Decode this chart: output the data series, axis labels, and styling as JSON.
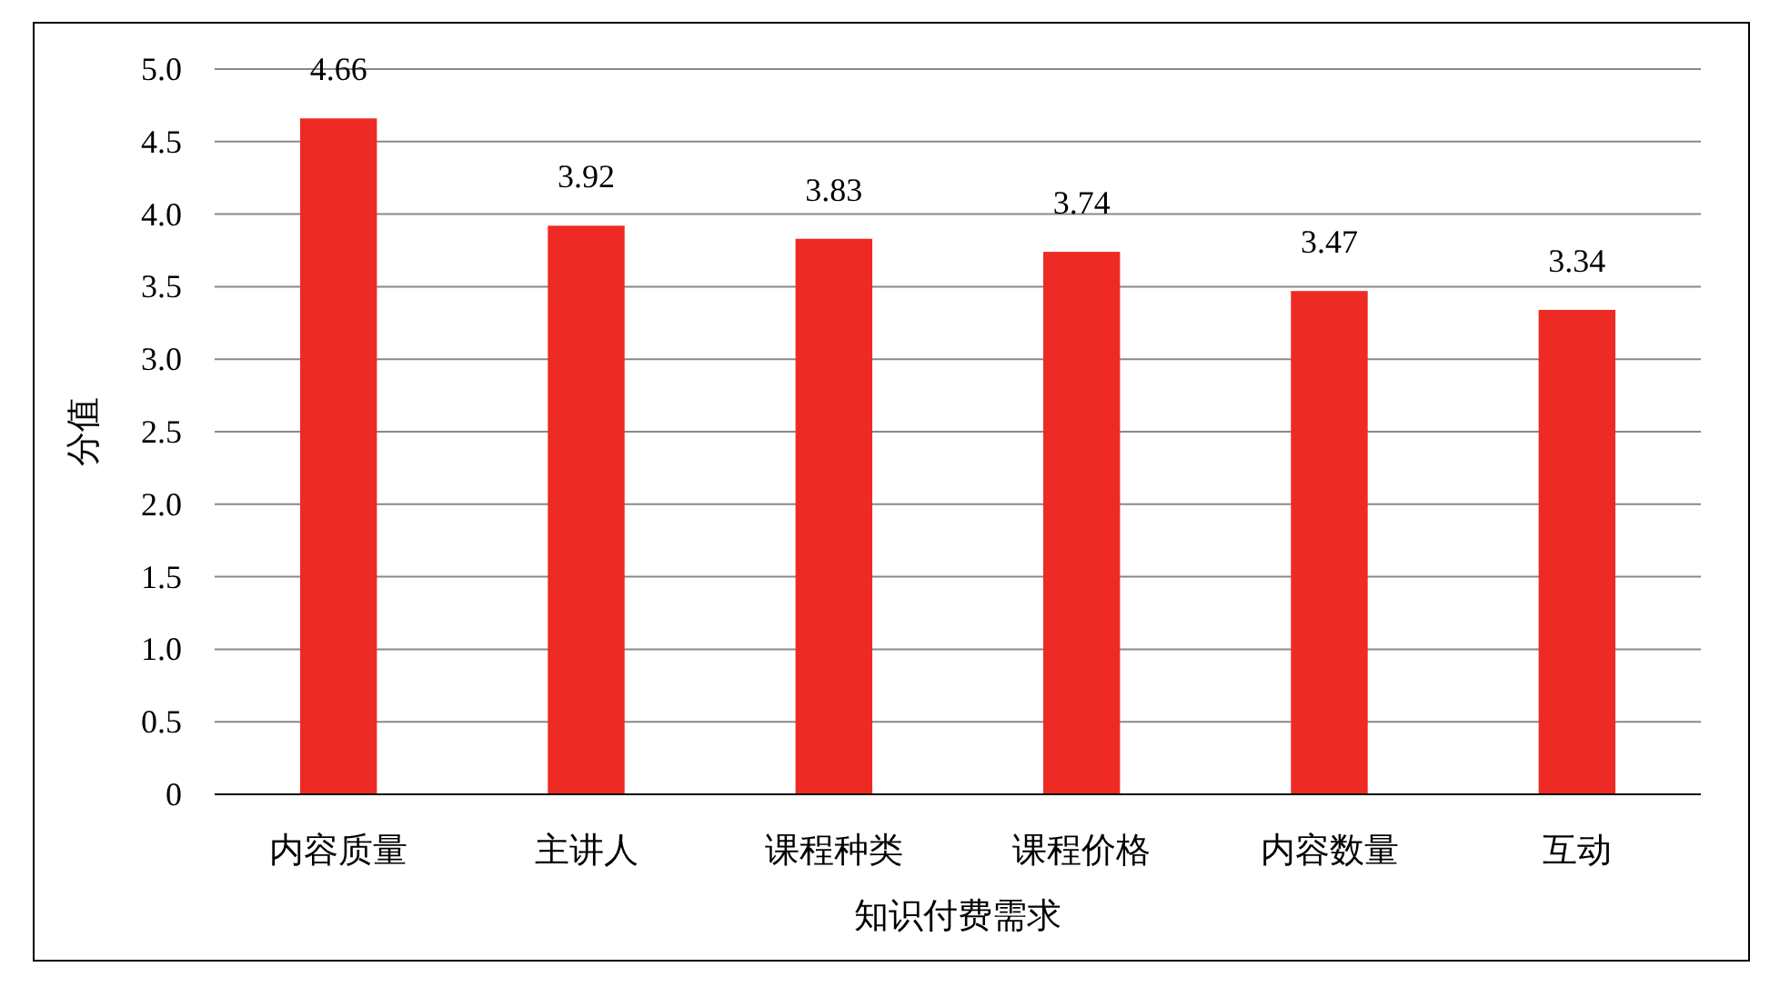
{
  "chart_data": {
    "type": "bar",
    "ylabel": "分值",
    "xlabel": "知识付费需求",
    "categories": [
      "内容质量",
      "主讲人",
      "课程种类",
      "课程价格",
      "内容数量",
      "互动"
    ],
    "values": [
      4.66,
      3.92,
      3.83,
      3.74,
      3.47,
      3.34
    ],
    "color": "#ee2a24",
    "ylim": [
      0,
      5
    ],
    "yticks": [
      0,
      {
        "value": 0.5,
        "label": "0.5"
      },
      {
        "value": 1,
        "label": "1.0"
      },
      {
        "value": 1.5,
        "label": "1.5"
      },
      {
        "value": 2,
        "label": "2.0"
      },
      {
        "value": 2.5,
        "label": "2.5"
      },
      {
        "value": 3,
        "label": "3.0"
      },
      {
        "value": 3.5,
        "label": "3.5"
      },
      {
        "value": 4,
        "label": "4.0"
      },
      {
        "value": 4.5,
        "label": "4.5"
      },
      {
        "value": 5,
        "label": "5.0"
      }
    ],
    "grid": "y",
    "data_labels": true
  }
}
